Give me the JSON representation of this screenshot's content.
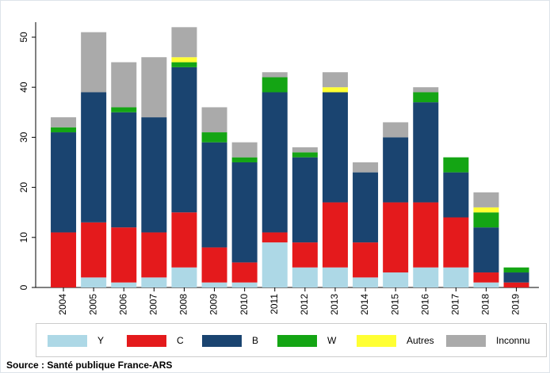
{
  "chart_data": {
    "type": "bar",
    "stacked": true,
    "categories": [
      "2004",
      "2005",
      "2006",
      "2007",
      "2008",
      "2009",
      "2010",
      "2011",
      "2012",
      "2013",
      "2014",
      "2015",
      "2016",
      "2017",
      "2018",
      "2019"
    ],
    "series": [
      {
        "name": "Y",
        "color": "#add8e6",
        "values": [
          0,
          2,
          1,
          2,
          4,
          1,
          1,
          9,
          4,
          4,
          2,
          3,
          4,
          4,
          1,
          0
        ]
      },
      {
        "name": "C",
        "color": "#e41a1c",
        "values": [
          11,
          11,
          11,
          9,
          11,
          7,
          4,
          2,
          5,
          13,
          7,
          14,
          13,
          10,
          2,
          1
        ]
      },
      {
        "name": "B",
        "color": "#1a4470",
        "values": [
          20,
          26,
          23,
          23,
          29,
          21,
          20,
          28,
          17,
          22,
          14,
          13,
          20,
          9,
          9,
          2
        ]
      },
      {
        "name": "W",
        "color": "#14a514",
        "values": [
          1,
          0,
          1,
          0,
          1,
          2,
          1,
          3,
          1,
          0,
          0,
          0,
          2,
          3,
          3,
          1
        ]
      },
      {
        "name": "Autres",
        "color": "#ffff33",
        "values": [
          0,
          0,
          0,
          0,
          1,
          0,
          0,
          0,
          0,
          1,
          0,
          0,
          0,
          0,
          1,
          0
        ]
      },
      {
        "name": "Inconnu",
        "color": "#aaaaaa",
        "values": [
          2,
          12,
          9,
          12,
          6,
          5,
          3,
          1,
          1,
          3,
          2,
          3,
          1,
          0,
          3,
          0
        ]
      }
    ],
    "ylim": [
      0,
      53
    ],
    "yticks": [
      0,
      10,
      20,
      30,
      40,
      50
    ],
    "grid": false,
    "legend": "bottom",
    "source": "Source : Santé publique France-ARS"
  }
}
